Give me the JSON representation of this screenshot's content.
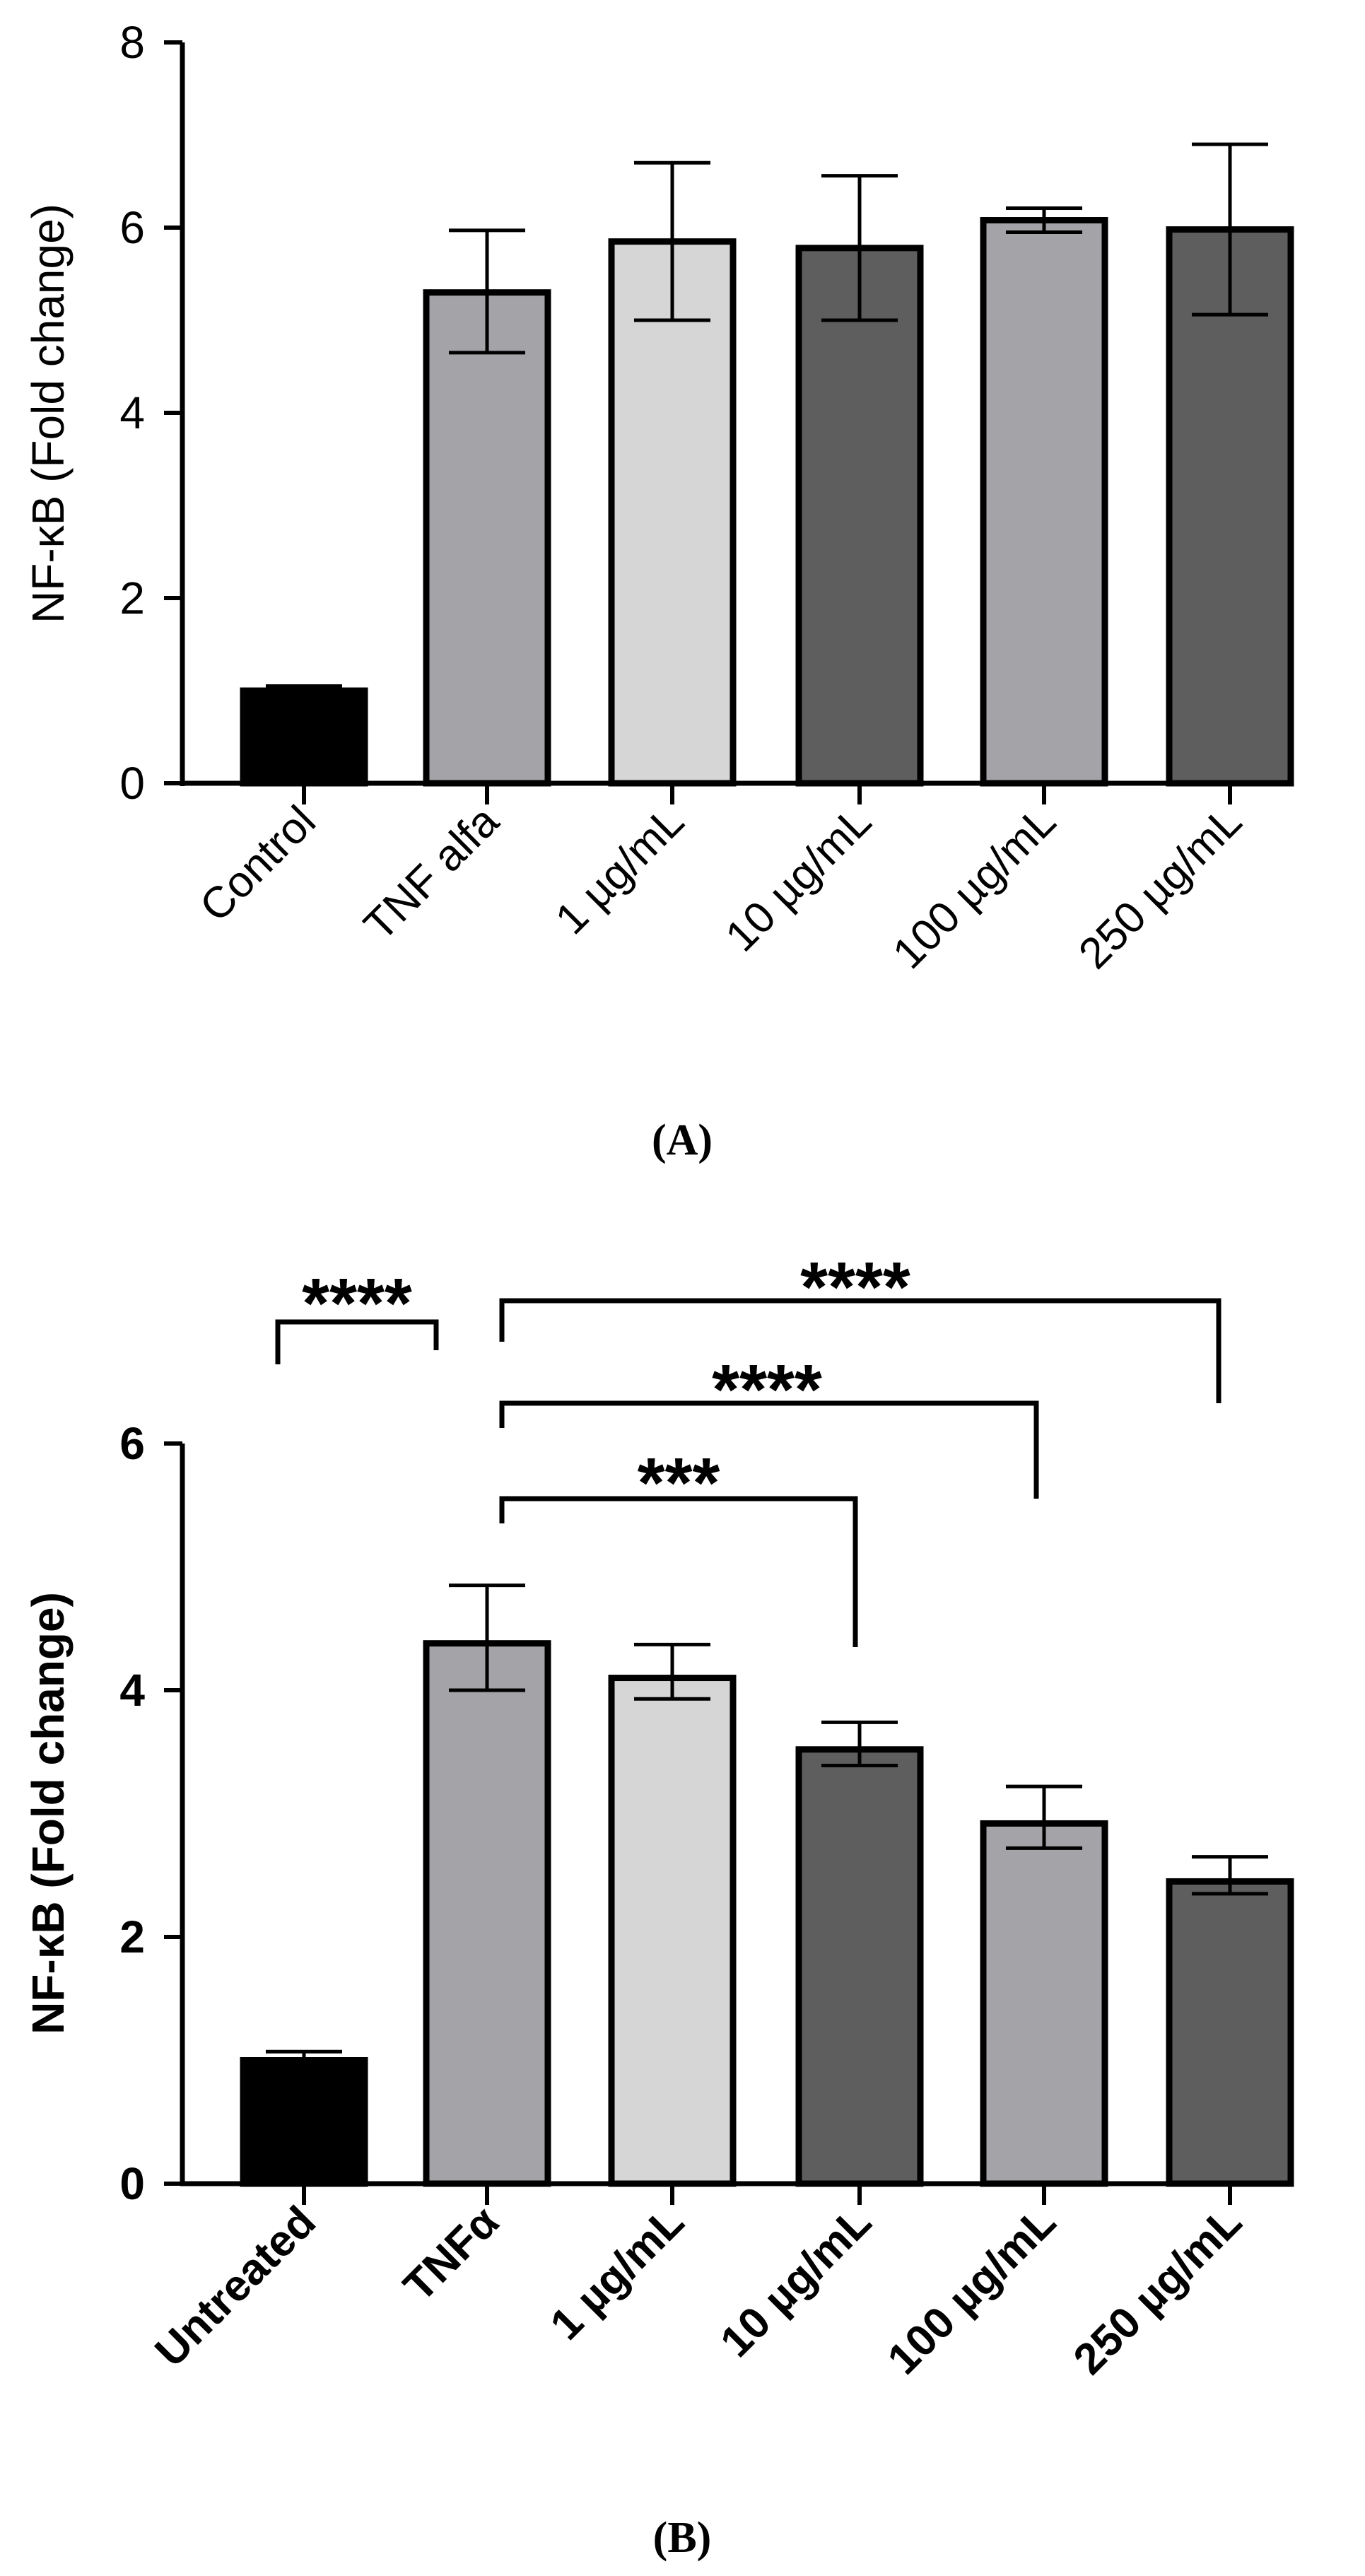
{
  "chart_data": [
    {
      "type": "bar",
      "panel_label": "(A)",
      "panel_letter": "A",
      "categories": [
        "Control",
        "TNF alfa",
        "1 µg/mL",
        "10 µg/mL",
        "100 µg/mL",
        "250 µg/mL"
      ],
      "values": [
        1.0,
        5.3,
        5.85,
        5.78,
        6.08,
        5.98
      ],
      "error_plus": [
        0.05,
        0.67,
        0.85,
        0.78,
        0.13,
        0.92
      ],
      "error_minus": [
        0.05,
        0.65,
        0.85,
        0.78,
        0.13,
        0.92
      ],
      "colors": [
        "#000000",
        "#a3a3a8",
        "#d6d6d6",
        "#5e5e5e",
        "#a3a3a8",
        "#5e5e5e"
      ],
      "ylabel": "NF-κB (Fold change)",
      "xlabel": "",
      "ylim": [
        0,
        8
      ],
      "yticks": [
        "0",
        "2",
        "4",
        "6",
        "8"
      ],
      "significance": []
    },
    {
      "type": "bar",
      "panel_label": "(B)",
      "panel_letter": "B",
      "categories": [
        "Untreated",
        "TNFα",
        "1 µg/mL",
        "10 µg/mL",
        "100 µg/mL",
        "250 µg/mL"
      ],
      "values": [
        1.0,
        4.38,
        4.1,
        3.52,
        2.92,
        2.45
      ],
      "error_plus": [
        0.07,
        0.47,
        0.27,
        0.22,
        0.3,
        0.2
      ],
      "error_minus": [
        0.07,
        0.38,
        0.17,
        0.13,
        0.2,
        0.1
      ],
      "colors": [
        "#000000",
        "#a3a3a8",
        "#d6d6d6",
        "#5e5e5e",
        "#a3a3a8",
        "#5e5e5e"
      ],
      "ylabel": "NF-κB (Fold change)",
      "xlabel": "",
      "ylim": [
        0,
        6
      ],
      "yticks": [
        "0",
        "2",
        "4",
        "6"
      ],
      "significance": [
        {
          "from": 0,
          "to": 1,
          "label": "****"
        },
        {
          "from": 1,
          "to": 3,
          "label": "***"
        },
        {
          "from": 1,
          "to": 4,
          "label": "****"
        },
        {
          "from": 1,
          "to": 5,
          "label": "****"
        }
      ]
    }
  ]
}
